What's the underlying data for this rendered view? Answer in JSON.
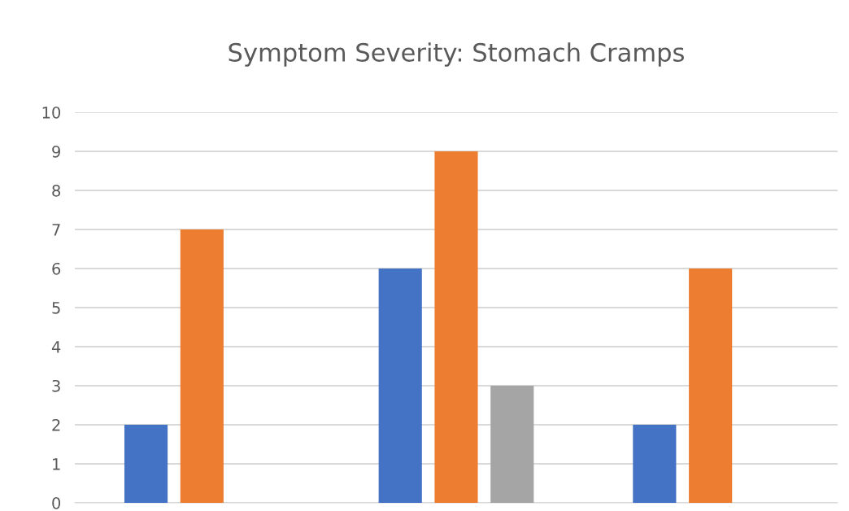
{
  "chart_data": {
    "type": "bar",
    "title": "Symptom Severity: Stomach Cramps",
    "categories": [
      null,
      null,
      null
    ],
    "series": [
      {
        "color": "#4472c4",
        "values": [
          2,
          6,
          2
        ]
      },
      {
        "color": "#ed7d31",
        "values": [
          7,
          9,
          6
        ]
      },
      {
        "color": "#a5a5a5",
        "values": [
          null,
          3,
          null
        ]
      }
    ],
    "ylim": [
      0,
      10
    ],
    "yticks": [
      0,
      1,
      2,
      3,
      4,
      5,
      6,
      7,
      8,
      9,
      10
    ],
    "grid": "y",
    "legend": false
  }
}
